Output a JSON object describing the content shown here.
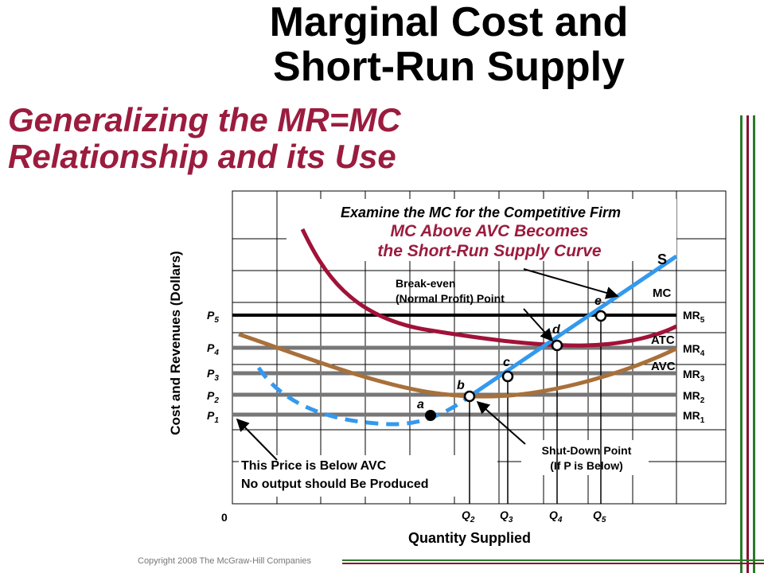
{
  "title_line1": "Marginal Cost and",
  "title_line2": "Short-Run Supply",
  "subtitle_line1": "Generalizing the MR=MC",
  "subtitle_line2": "Relationship and its Use",
  "copyright": "Copyright 2008 The McGraw-Hill Companies",
  "colors": {
    "title": "#000000",
    "subtitle": "#9b1c3e",
    "mc_curve": "#a01238",
    "avc_curve": "#a8703a",
    "supply_line": "#3399ee",
    "grid": "#000000",
    "mr_lines": "#777777",
    "border_green": "#2a7a2a",
    "border_maroon": "#8a1030"
  },
  "chart_data": {
    "type": "line",
    "heading": "Examine the MC for the Competitive Firm",
    "callout_line1": "MC Above AVC Becomes",
    "callout_line2": "the Short-Run Supply Curve",
    "xlabel": "Quantity Supplied",
    "ylabel": "Cost and Revenues (Dollars)",
    "origin_label": "0",
    "curve_labels": {
      "supply": "S",
      "mc": "MC",
      "atc": "ATC",
      "avc": "AVC"
    },
    "price_levels": [
      {
        "p": "P",
        "sub": "1",
        "mr": "MR",
        "mr_sub": "1",
        "value": 1
      },
      {
        "p": "P",
        "sub": "2",
        "mr": "MR",
        "mr_sub": "2",
        "value": 2
      },
      {
        "p": "P",
        "sub": "3",
        "mr": "MR",
        "mr_sub": "3",
        "value": 3
      },
      {
        "p": "P",
        "sub": "4",
        "mr": "MR",
        "mr_sub": "4",
        "value": 4
      },
      {
        "p": "P",
        "sub": "5",
        "mr": "MR",
        "mr_sub": "5",
        "value": 5
      }
    ],
    "quantity_labels": [
      {
        "q": "Q",
        "sub": "2",
        "value": 2
      },
      {
        "q": "Q",
        "sub": "3",
        "value": 3
      },
      {
        "q": "Q",
        "sub": "4",
        "value": 4
      },
      {
        "q": "Q",
        "sub": "5",
        "value": 5
      }
    ],
    "points": [
      {
        "label": "a",
        "q": 1,
        "p": 1,
        "filled": true
      },
      {
        "label": "b",
        "q": 2,
        "p": 2,
        "filled": false
      },
      {
        "label": "c",
        "q": 3,
        "p": 3,
        "filled": false
      },
      {
        "label": "d",
        "q": 4,
        "p": 4,
        "filled": false
      },
      {
        "label": "e",
        "q": 5,
        "p": 5,
        "filled": false
      }
    ],
    "annotations": {
      "break_even_line1": "Break-even",
      "break_even_line2": "(Normal Profit) Point",
      "shutdown_line1": "Shut-Down Point",
      "shutdown_line2": "(If P is Below)",
      "below_avc_line1": "This Price is Below AVC",
      "below_avc_line2": "No output should Be Produced"
    },
    "grid": true
  }
}
